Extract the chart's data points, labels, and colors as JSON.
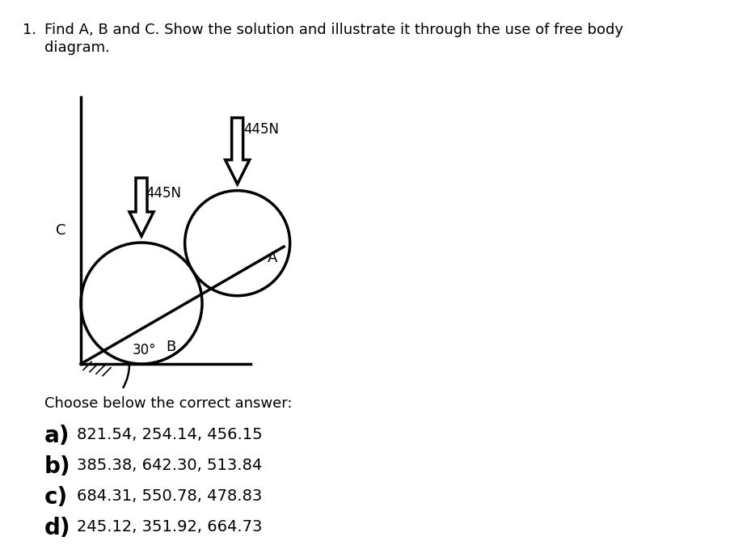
{
  "title_num": "1.",
  "title_text": "Find A, B and C. Show the solution and illustrate it through the use of free body\ndiagram.",
  "force_label_1": "445N",
  "force_label_2": "445N",
  "label_A": "A",
  "label_B": "B",
  "label_C": "C",
  "angle_label": "30°",
  "choose_text": "Choose below the correct answer:",
  "options": [
    {
      "letter": "a)",
      "text": "821.54, 254.14, 456.15"
    },
    {
      "letter": "b)",
      "text": "385.38, 642.30, 513.84"
    },
    {
      "letter": "c)",
      "text": "684.31, 550.78, 478.83"
    },
    {
      "letter": "d)",
      "text": "245.12, 351.92, 664.73"
    }
  ],
  "bg_color": "#ffffff",
  "line_color": "#000000",
  "circle_color": "#000000",
  "text_color": "#000000",
  "title_fontsize": 13,
  "diagram_fontsize": 12,
  "choose_fontsize": 13,
  "option_letter_fontsize": 20,
  "option_text_fontsize": 14
}
